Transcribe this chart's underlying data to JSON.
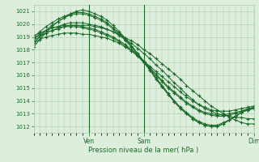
{
  "bg_color": "#ddeedd",
  "grid_color": "#aaccaa",
  "line_color": "#1a6b2a",
  "xlabel_text": "Pression niveau de la mer( hPa )",
  "ylim": [
    1011.5,
    1021.5
  ],
  "yticks": [
    1012,
    1013,
    1014,
    1015,
    1016,
    1017,
    1018,
    1019,
    1020,
    1021
  ],
  "x_total": 72,
  "xtick_positions": [
    18,
    36,
    72
  ],
  "xtick_labels": [
    "Ven",
    "Sam",
    "Dim"
  ],
  "vline_positions": [
    18,
    36,
    72
  ],
  "series": [
    [
      1018.5,
      1018.8,
      1019.0,
      1019.1,
      1019.2,
      1019.3,
      1019.3,
      1019.3,
      1019.2,
      1019.2,
      1019.1,
      1019.0,
      1018.9,
      1018.7,
      1018.5,
      1018.2,
      1017.9,
      1017.5,
      1017.1,
      1016.7,
      1016.3,
      1015.9,
      1015.5,
      1015.1,
      1014.7,
      1014.3,
      1014.0,
      1013.7,
      1013.5,
      1013.3,
      1013.2,
      1013.2,
      1013.2,
      1013.3,
      1013.4,
      1013.5,
      1013.6
    ],
    [
      1018.7,
      1019.0,
      1019.3,
      1019.5,
      1019.7,
      1019.8,
      1019.8,
      1019.8,
      1019.7,
      1019.6,
      1019.5,
      1019.3,
      1019.1,
      1018.9,
      1018.6,
      1018.3,
      1017.9,
      1017.5,
      1017.0,
      1016.5,
      1016.0,
      1015.5,
      1015.0,
      1014.6,
      1014.2,
      1013.8,
      1013.5,
      1013.2,
      1013.0,
      1012.9,
      1012.8,
      1012.8,
      1012.9,
      1013.0,
      1013.2,
      1013.3,
      1013.4
    ],
    [
      1018.9,
      1019.2,
      1019.5,
      1019.7,
      1019.8,
      1019.9,
      1019.9,
      1019.9,
      1019.8,
      1019.7,
      1019.6,
      1019.4,
      1019.2,
      1019.0,
      1018.7,
      1018.4,
      1018.0,
      1017.6,
      1017.1,
      1016.6,
      1016.1,
      1015.6,
      1015.1,
      1014.7,
      1014.3,
      1013.9,
      1013.6,
      1013.3,
      1013.1,
      1013.0,
      1012.9,
      1012.9,
      1013.0,
      1013.1,
      1013.2,
      1013.4,
      1013.5
    ],
    [
      1018.5,
      1019.0,
      1019.5,
      1019.9,
      1020.2,
      1020.5,
      1020.7,
      1020.8,
      1020.8,
      1020.7,
      1020.5,
      1020.3,
      1020.0,
      1019.6,
      1019.2,
      1018.7,
      1018.2,
      1017.6,
      1017.0,
      1016.4,
      1015.7,
      1015.1,
      1014.5,
      1013.9,
      1013.4,
      1013.0,
      1012.6,
      1012.3,
      1012.1,
      1012.0,
      1012.0,
      1012.2,
      1012.5,
      1012.8,
      1013.1,
      1013.3,
      1013.5
    ],
    [
      1019.0,
      1019.4,
      1019.8,
      1020.1,
      1020.4,
      1020.6,
      1020.8,
      1020.9,
      1020.9,
      1020.8,
      1020.6,
      1020.4,
      1020.1,
      1019.7,
      1019.3,
      1018.8,
      1018.3,
      1017.7,
      1017.1,
      1016.5,
      1015.8,
      1015.2,
      1014.6,
      1014.0,
      1013.5,
      1013.1,
      1012.7,
      1012.4,
      1012.2,
      1012.1,
      1012.1,
      1012.3,
      1012.5,
      1012.8,
      1013.1,
      1013.3,
      1013.4
    ],
    [
      1018.2,
      1018.8,
      1019.3,
      1019.8,
      1020.2,
      1020.5,
      1020.8,
      1021.0,
      1021.1,
      1021.0,
      1020.8,
      1020.6,
      1020.3,
      1019.9,
      1019.4,
      1018.9,
      1018.3,
      1017.7,
      1017.1,
      1016.4,
      1015.8,
      1015.1,
      1014.5,
      1014.0,
      1013.4,
      1013.0,
      1012.6,
      1012.3,
      1012.1,
      1012.0,
      1012.0,
      1012.2,
      1012.5,
      1012.8,
      1013.1,
      1013.3,
      1013.4
    ],
    [
      1019.1,
      1019.3,
      1019.5,
      1019.7,
      1019.8,
      1020.0,
      1020.1,
      1020.1,
      1020.1,
      1020.0,
      1019.9,
      1019.8,
      1019.6,
      1019.4,
      1019.1,
      1018.8,
      1018.5,
      1018.1,
      1017.7,
      1017.3,
      1016.8,
      1016.4,
      1015.9,
      1015.4,
      1015.0,
      1014.5,
      1014.1,
      1013.7,
      1013.4,
      1013.2,
      1013.0,
      1012.9,
      1012.8,
      1012.7,
      1012.7,
      1012.6,
      1012.6
    ],
    [
      1018.9,
      1019.1,
      1019.3,
      1019.5,
      1019.6,
      1019.8,
      1019.9,
      1019.9,
      1019.9,
      1019.9,
      1019.8,
      1019.7,
      1019.6,
      1019.4,
      1019.2,
      1018.9,
      1018.7,
      1018.4,
      1018.0,
      1017.7,
      1017.3,
      1016.9,
      1016.5,
      1016.1,
      1015.7,
      1015.2,
      1014.8,
      1014.4,
      1014.0,
      1013.6,
      1013.3,
      1013.0,
      1012.7,
      1012.5,
      1012.3,
      1012.2,
      1012.2
    ]
  ]
}
